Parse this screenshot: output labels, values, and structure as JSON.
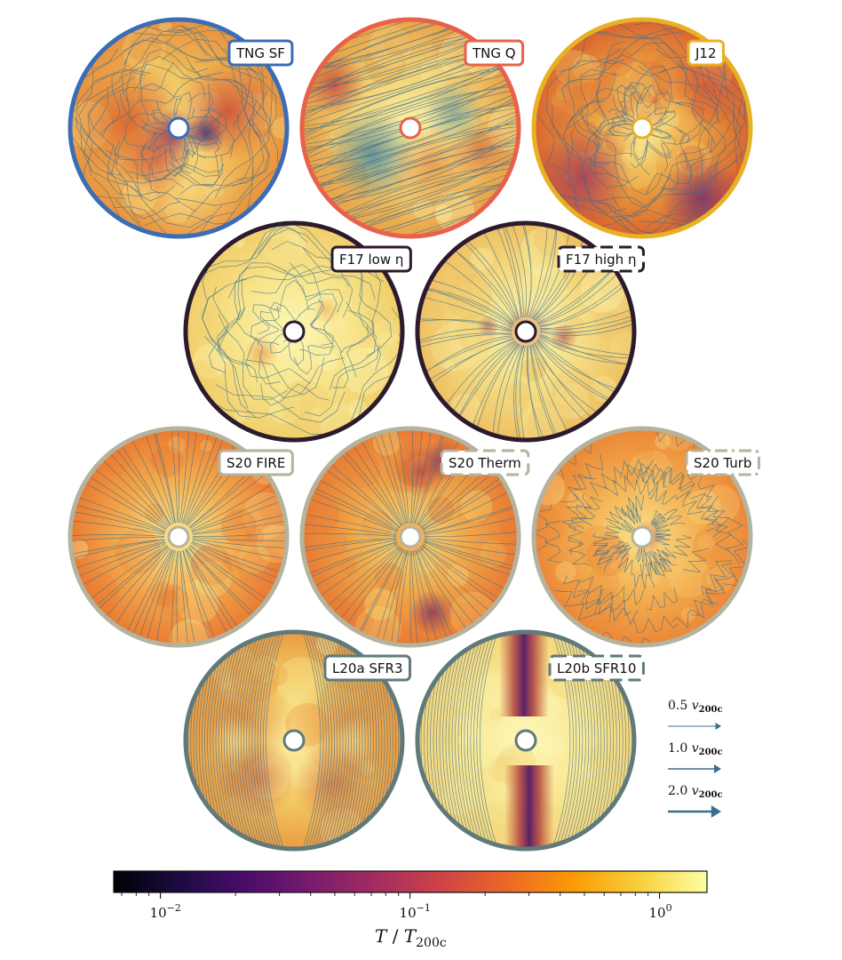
{
  "panels": [
    {
      "label": "TNG SF",
      "color": "#3a6db5",
      "style": "solid",
      "theme": "tng_sf"
    },
    {
      "label": "TNG Q",
      "color": "#e8614a",
      "style": "solid",
      "theme": "tng_q"
    },
    {
      "label": "J12",
      "color": "#e8b023",
      "style": "solid",
      "theme": "j12"
    },
    {
      "label": "F17 low η",
      "color": "#2c1a2e",
      "style": "solid",
      "theme": "f17_low"
    },
    {
      "label": "F17 high η",
      "color": "#2c1a2e",
      "style": "dashed",
      "theme": "f17_high"
    },
    {
      "label": "S20 FIRE",
      "color": "#b5b29d",
      "style": "solid",
      "theme": "s20_fire"
    },
    {
      "label": "S20 Therm",
      "color": "#b5b29d",
      "style": "dashed",
      "theme": "s20_therm"
    },
    {
      "label": "S20 Turb",
      "color": "#b5b29d",
      "style": "dashdot",
      "theme": "s20_turb"
    },
    {
      "label": "L20a SFR3",
      "color": "#60797a",
      "style": "solid",
      "theme": "l20a"
    },
    {
      "label": "L20b SFR10",
      "color": "#60797a",
      "style": "dashed",
      "theme": "l20b"
    }
  ],
  "velocity_legend": [
    {
      "num": "0.5",
      "sym": "v",
      "sub": "200c",
      "scale": 0.5
    },
    {
      "num": "1.0",
      "sym": "v",
      "sub": "200c",
      "scale": 1.0
    },
    {
      "num": "2.0",
      "sym": "v",
      "sub": "200c",
      "scale": 2.0
    }
  ],
  "colorbar": {
    "ticks": [
      {
        "base": "10",
        "exp": "−2",
        "value": 0.01
      },
      {
        "base": "10",
        "exp": "−1",
        "value": 0.1
      },
      {
        "base": "10",
        "exp": "0",
        "value": 1.0
      }
    ],
    "min": 0.0065,
    "max": 1.55,
    "scale": "log",
    "title_main": "T",
    "title_sep": " / ",
    "title_den": "T",
    "title_sub": "200c"
  },
  "colors": {
    "streamline": "#3b6f8f",
    "cmap": [
      "#000004",
      "#1b0c41",
      "#4a0c6b",
      "#781c6d",
      "#a52c60",
      "#cf4446",
      "#ed6925",
      "#fb9b06",
      "#f7d13d",
      "#fcffa4"
    ]
  }
}
